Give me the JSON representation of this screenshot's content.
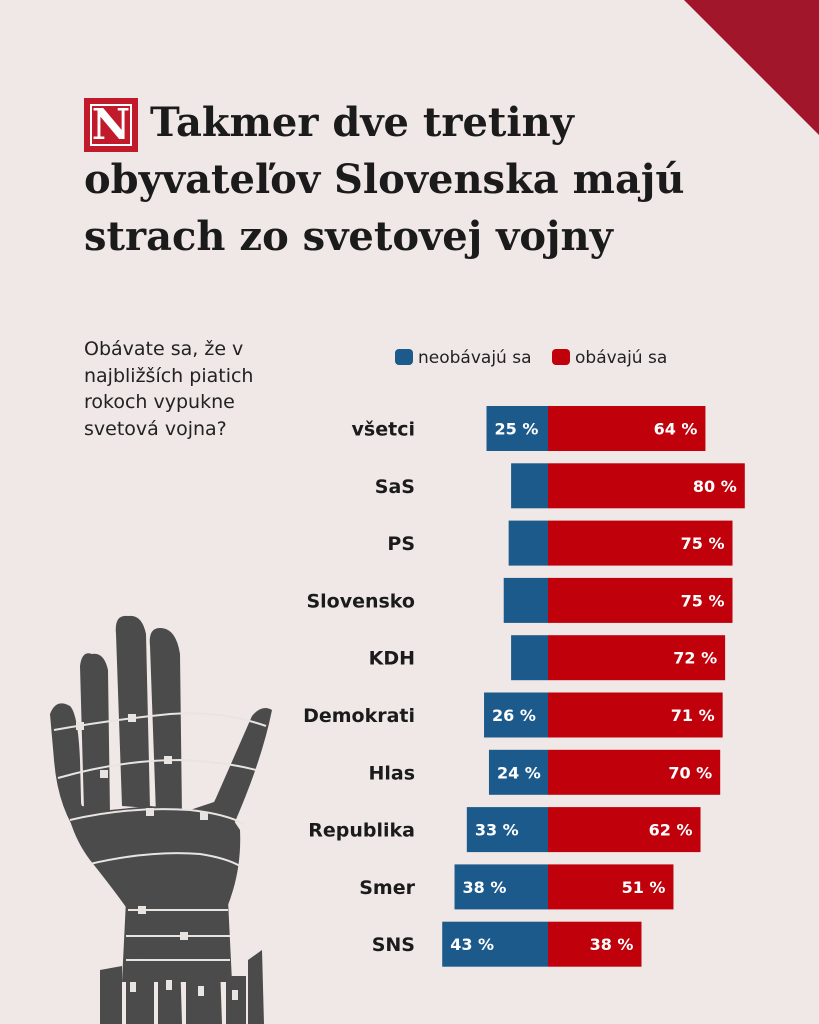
{
  "title": "Takmer dve tretiny obyvateľov Slovenska majú strach zo svetovej vojny",
  "logo_letter": "N",
  "question": "Obávate sa, že v najbližších piatich rokoch vypukne svetová vojna?",
  "colors": {
    "background": "#efe8e6",
    "accent": "#a2162b",
    "not_afraid": "#1c5a8c",
    "afraid": "#c0000b"
  },
  "illustration": "raised-hand-barbed-wire",
  "chart_data": {
    "type": "bar",
    "orientation": "horizontal-diverging",
    "title": "Obávate sa, že v najbližších piatich rokoch vypukne svetová vojna?",
    "categories": [
      "všetci",
      "SaS",
      "PS",
      "Slovensko",
      "KDH",
      "Demokrati",
      "Hlas",
      "Republika",
      "Smer",
      "SNS"
    ],
    "series": [
      {
        "name": "neobávajú sa",
        "color": "#1c5a8c",
        "values": [
          25,
          15,
          16,
          18,
          15,
          26,
          24,
          33,
          38,
          43
        ],
        "labels": [
          "25 %",
          "",
          "",
          "",
          "",
          "26 %",
          "24 %",
          "33 %",
          "38 %",
          "43 %"
        ]
      },
      {
        "name": "obávajú sa",
        "color": "#c0000b",
        "values": [
          64,
          80,
          75,
          75,
          72,
          71,
          70,
          62,
          51,
          38
        ],
        "labels": [
          "64 %",
          "80 %",
          "75 %",
          "75 %",
          "72 %",
          "71 %",
          "70 %",
          "62 %",
          "51 %",
          "38 %"
        ]
      }
    ],
    "unit": "%",
    "legend_position": "top"
  }
}
